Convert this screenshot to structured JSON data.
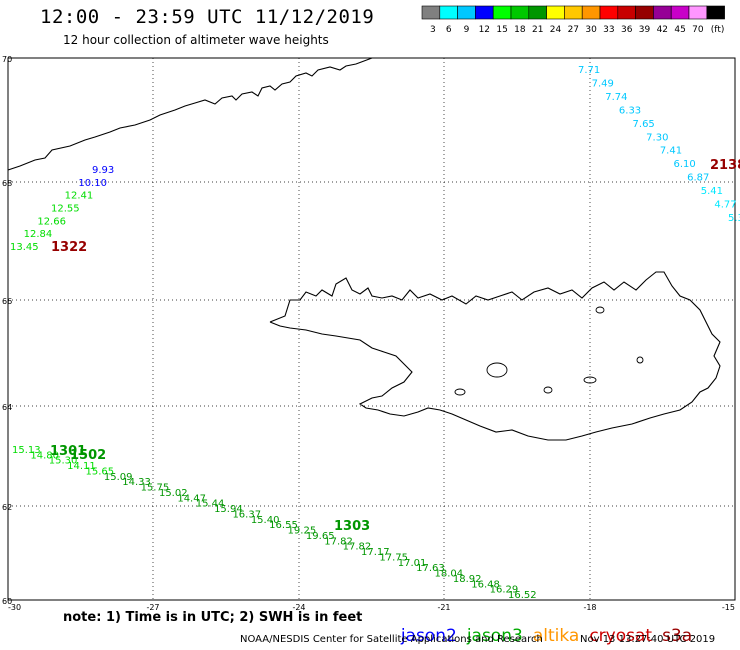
{
  "header": {
    "title": "12:00 - 23:59 UTC 11/12/2019",
    "subtitle": "12 hour collection of altimeter wave heights"
  },
  "color_scale": {
    "unit": "(ft)",
    "bins": [
      {
        "label": "3",
        "color": "#808080"
      },
      {
        "label": "6",
        "color": "#00ffff"
      },
      {
        "label": "9",
        "color": "#00c8ff"
      },
      {
        "label": "12",
        "color": "#0000ff"
      },
      {
        "label": "15",
        "color": "#00ff00"
      },
      {
        "label": "18",
        "color": "#00c800"
      },
      {
        "label": "21",
        "color": "#009600"
      },
      {
        "label": "24",
        "color": "#ffff00"
      },
      {
        "label": "27",
        "color": "#ffc800"
      },
      {
        "label": "30",
        "color": "#ff9600"
      },
      {
        "label": "33",
        "color": "#ff0000"
      },
      {
        "label": "36",
        "color": "#c80000"
      },
      {
        "label": "39",
        "color": "#960000"
      },
      {
        "label": "42",
        "color": "#960096"
      },
      {
        "label": "45",
        "color": "#c800c8"
      },
      {
        "label": "70",
        "color": "#ff96ff"
      },
      {
        "label": "",
        "color": "#000000"
      }
    ]
  },
  "axes": {
    "lat_ticks": [
      "70",
      "68",
      "66",
      "64",
      "62",
      "60"
    ],
    "lon_ticks": [
      "-30",
      "-27",
      "-24",
      "-21",
      "-18",
      "-15"
    ]
  },
  "tracks": [
    {
      "name": "west",
      "points": [
        {
          "label": "9.93",
          "color": "#0000ff"
        },
        {
          "label": "10.10",
          "color": "#0000ff"
        },
        {
          "label": "12.41",
          "color": "#00dd00"
        },
        {
          "label": "12.55",
          "color": "#00dd00"
        },
        {
          "label": "12.66",
          "color": "#00dd00"
        },
        {
          "label": "12.84",
          "color": "#00dd00"
        },
        {
          "label": "13.45",
          "color": "#00dd00"
        }
      ],
      "time_label": {
        "label": "1322",
        "color": "#960000"
      }
    },
    {
      "name": "east",
      "points": [
        {
          "label": "7.71",
          "color": "#00c8ff"
        },
        {
          "label": "7.49",
          "color": "#00c8ff"
        },
        {
          "label": "7.74",
          "color": "#00c8ff"
        },
        {
          "label": "6.33",
          "color": "#00c8ff"
        },
        {
          "label": "7.65",
          "color": "#00c8ff"
        },
        {
          "label": "7.30",
          "color": "#00c8ff"
        },
        {
          "label": "7.41",
          "color": "#00c8ff"
        },
        {
          "label": "6.10",
          "color": "#00c8ff"
        },
        {
          "label": "6.87",
          "color": "#00c8ff"
        },
        {
          "label": "5.41",
          "color": "#00e8ff"
        },
        {
          "label": "4.77",
          "color": "#00e8ff"
        },
        {
          "label": "5.3",
          "color": "#00e8ff"
        }
      ],
      "time_label": {
        "label": "2138",
        "color": "#960000"
      }
    },
    {
      "name": "south",
      "points": [
        {
          "label": "15.13",
          "color": "#00dd00"
        },
        {
          "label": "14.80",
          "color": "#00dd00"
        },
        {
          "label": "15.30",
          "color": "#00dd00"
        },
        {
          "label": "14.11",
          "color": "#00dd00"
        },
        {
          "label": "15.65",
          "color": "#00dd00"
        },
        {
          "label": "15.09",
          "color": "#009600"
        },
        {
          "label": "14.33",
          "color": "#009600"
        },
        {
          "label": "15.75",
          "color": "#009600"
        },
        {
          "label": "15.02",
          "color": "#009600"
        },
        {
          "label": "14.47",
          "color": "#009600"
        },
        {
          "label": "15.44",
          "color": "#009600"
        },
        {
          "label": "15.94",
          "color": "#009600"
        },
        {
          "label": "16.37",
          "color": "#009600"
        },
        {
          "label": "15.40",
          "color": "#009600"
        },
        {
          "label": "16.55",
          "color": "#009600"
        },
        {
          "label": "19.25",
          "color": "#009600"
        },
        {
          "label": "19.65",
          "color": "#009600"
        },
        {
          "label": "17.82",
          "color": "#009600"
        },
        {
          "label": "17.82",
          "color": "#009600"
        },
        {
          "label": "17.17",
          "color": "#009600"
        },
        {
          "label": "17.75",
          "color": "#009600"
        },
        {
          "label": "17.01",
          "color": "#009600"
        },
        {
          "label": "17.63",
          "color": "#009600"
        },
        {
          "label": "18.04",
          "color": "#009600"
        },
        {
          "label": "18.92",
          "color": "#009600"
        },
        {
          "label": "16.48",
          "color": "#009600"
        },
        {
          "label": "16.29",
          "color": "#009600"
        },
        {
          "label": "16.52",
          "color": "#009600"
        }
      ],
      "time_labels": [
        {
          "label": "1301",
          "color": "#009600"
        },
        {
          "label": "1502",
          "color": "#009600"
        },
        {
          "label": "1303",
          "color": "#009600"
        }
      ]
    }
  ],
  "footer": {
    "note": "note: 1) Time is in UTC; 2) SWH is in feet",
    "legend": [
      {
        "label": "jason2",
        "color": "#0000ff"
      },
      {
        "label": "jason3",
        "color": "#00aa00"
      },
      {
        "label": "altika",
        "color": "#ff9600"
      },
      {
        "label": "cryosat",
        "color": "#cc0000"
      },
      {
        "label": "s3a",
        "color": "#990000"
      }
    ],
    "credit": "NOAA/NESDIS Center for Satellite Applications and Research",
    "timestamp": "Nov 13 13:27:40 UTC 2019"
  }
}
